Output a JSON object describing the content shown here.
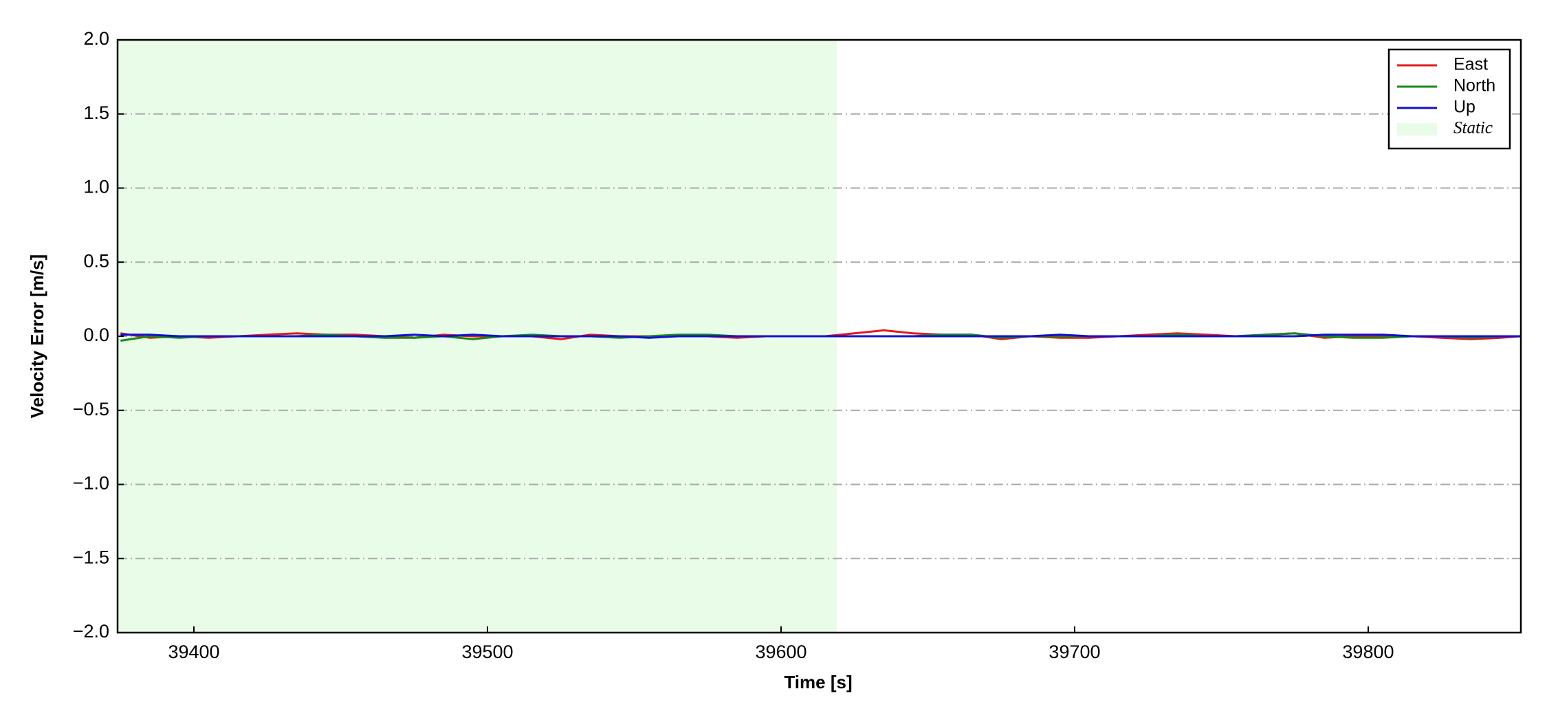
{
  "chart_data": {
    "type": "line",
    "xlabel": "Time [s]",
    "ylabel": "Velocity Error [m/s]",
    "x": [
      39375,
      39385,
      39395,
      39405,
      39415,
      39425,
      39435,
      39445,
      39455,
      39465,
      39475,
      39485,
      39495,
      39505,
      39515,
      39525,
      39535,
      39545,
      39555,
      39565,
      39575,
      39585,
      39595,
      39605,
      39615,
      39625,
      39635,
      39645,
      39655,
      39665,
      39675,
      39685,
      39695,
      39705,
      39715,
      39725,
      39735,
      39745,
      39755,
      39765,
      39775,
      39785,
      39795,
      39805,
      39815,
      39825,
      39835,
      39845,
      39852
    ],
    "series": [
      {
        "name": "East",
        "color": "#e31a1c",
        "values": [
          0.02,
          -0.01,
          0,
          -0.01,
          0,
          0.01,
          0.02,
          0.01,
          0.01,
          0,
          -0.01,
          0.01,
          0,
          0,
          0,
          -0.02,
          0.01,
          0,
          0,
          0,
          0,
          -0.01,
          0,
          0,
          0,
          0.02,
          0.04,
          0.02,
          0.01,
          0.01,
          -0.02,
          0,
          -0.01,
          -0.01,
          0,
          0.01,
          0.02,
          0.01,
          0,
          0.01,
          0.02,
          -0.01,
          0,
          0,
          0,
          -0.01,
          -0.02,
          -0.01,
          0
        ]
      },
      {
        "name": "North",
        "color": "#178a17",
        "values": [
          -0.03,
          0,
          -0.01,
          0,
          0,
          0,
          0,
          0.01,
          0,
          -0.01,
          -0.01,
          0,
          -0.02,
          0,
          0.01,
          0,
          0,
          -0.01,
          0,
          0.01,
          0.01,
          0,
          0,
          0,
          0,
          0,
          0,
          0,
          0.01,
          0.01,
          -0.01,
          0,
          0,
          0,
          0,
          0,
          0.01,
          0,
          0,
          0.01,
          0.02,
          0,
          -0.01,
          -0.01,
          0,
          0,
          -0.01,
          0,
          0
        ]
      },
      {
        "name": "Up",
        "color": "#1010d0",
        "values": [
          0.01,
          0.01,
          0,
          0,
          0,
          0,
          0,
          0,
          0,
          0,
          0.01,
          0,
          0.01,
          0,
          0,
          0,
          0,
          0,
          -0.01,
          0,
          0,
          0,
          0,
          0,
          0,
          0,
          0,
          0,
          0,
          0,
          0,
          0,
          0.01,
          0,
          0,
          0,
          0,
          0,
          0,
          0,
          0,
          0.01,
          0.01,
          0.01,
          0,
          0,
          0,
          0,
          0
        ]
      }
    ],
    "span": {
      "name": "Static",
      "start": 39374,
      "end": 39619,
      "color": "#e8fce8"
    },
    "xlim": [
      39374,
      39852
    ],
    "xticks": [
      39400,
      39500,
      39600,
      39700,
      39800
    ],
    "ylim": [
      -2,
      2
    ],
    "yticks": [
      {
        "value": -2,
        "label": "−2.0"
      },
      {
        "value": -1.5,
        "label": "−1.5"
      },
      {
        "value": -1,
        "label": "−1.0"
      },
      {
        "value": -0.5,
        "label": "−0.5"
      },
      {
        "value": 0,
        "label": "0.0"
      },
      0.5,
      {
        "value": 1,
        "label": "1.0"
      },
      1.5,
      {
        "value": 2,
        "label": "2.0"
      }
    ],
    "grid": true,
    "legend": "upper right"
  }
}
